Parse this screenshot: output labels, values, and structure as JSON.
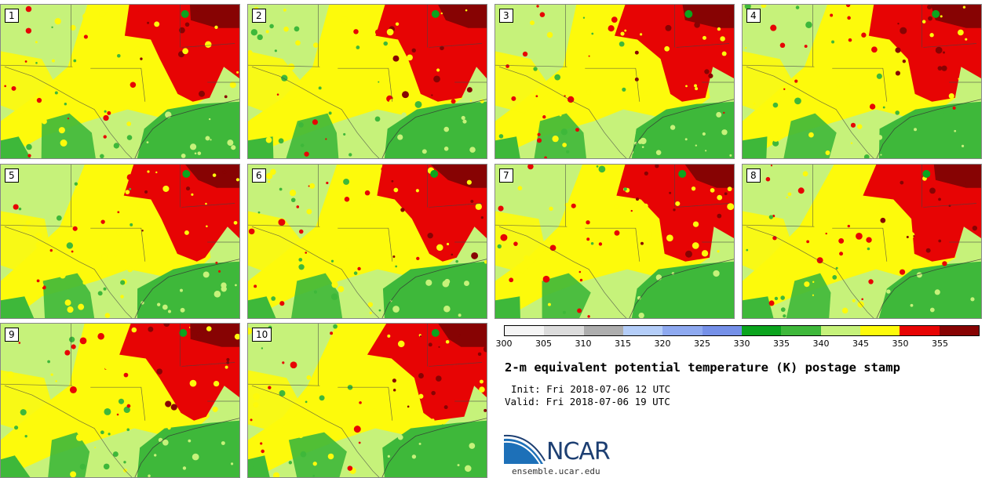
{
  "panels": [
    {
      "label": "1"
    },
    {
      "label": "2"
    },
    {
      "label": "3"
    },
    {
      "label": "4"
    },
    {
      "label": "5"
    },
    {
      "label": "6"
    },
    {
      "label": "7"
    },
    {
      "label": "8"
    },
    {
      "label": "9"
    },
    {
      "label": "10"
    }
  ],
  "colorbar": {
    "colors": [
      "#f5f5f5",
      "#dcdcdc",
      "#adadad",
      "#b4cdf8",
      "#8ea9f0",
      "#7590e8",
      "#0ba41e",
      "#3eb83a",
      "#c6f27a",
      "#fdfa0b",
      "#e70404",
      "#870303"
    ],
    "ticks": [
      "300",
      "305",
      "310",
      "315",
      "320",
      "325",
      "330",
      "335",
      "340",
      "345",
      "350",
      "355"
    ]
  },
  "title": "2-m equivalent potential temperature (K) postage stamp",
  "init": "Init: Fri 2018-07-06 12 UTC",
  "valid": "Valid: Fri 2018-07-06 19 UTC",
  "logo": {
    "text": "NCAR",
    "colors": {
      "blue": "#1d70b8",
      "navy": "#1d3f72"
    }
  },
  "website": "ensemble.ucar.edu"
}
